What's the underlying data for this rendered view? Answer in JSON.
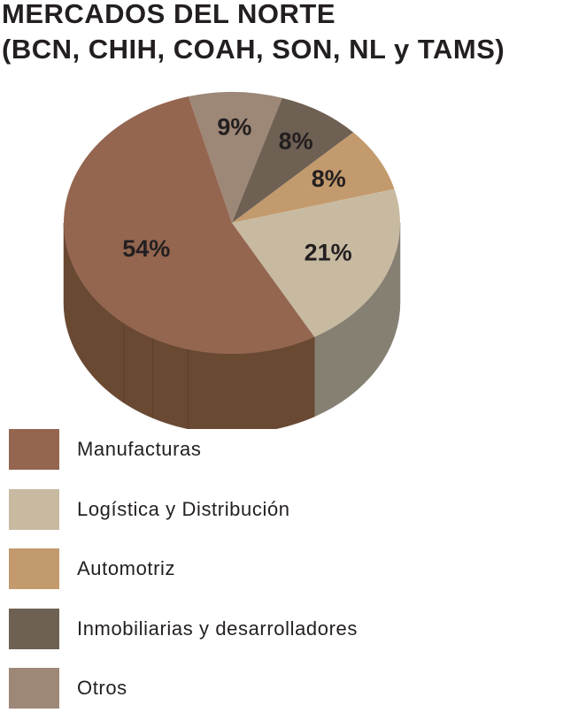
{
  "title": {
    "line1": "MERCADOS DEL NORTE",
    "line2": "(BCN, CHIH, COAH, SON, NL y TAMS)"
  },
  "chart_data": {
    "type": "pie",
    "style": "3d",
    "slices": [
      {
        "label": "Manufacturas",
        "value": 54,
        "display": "54%",
        "color": "#946650",
        "side_color": "#6a4933"
      },
      {
        "label": "Logística y Distribución",
        "value": 21,
        "display": "21%",
        "color": "#c8baa1",
        "side_color": "#868073"
      },
      {
        "label": "Automotriz",
        "value": 8,
        "display": "8%",
        "color": "#c39a6d",
        "side_color": "#8a6c4c"
      },
      {
        "label": "Inmobiliarias y desarrolladores",
        "value": 8,
        "display": "8%",
        "color": "#6e6053",
        "side_color": "#4e4438"
      },
      {
        "label": "Otros",
        "value": 9,
        "display": "9%",
        "color": "#9d8777",
        "side_color": "#6f5f53"
      }
    ],
    "legend_position": "bottom"
  },
  "legend": {
    "items": [
      {
        "label": "Manufacturas",
        "color": "#946650"
      },
      {
        "label": "Logística y Distribución",
        "color": "#c8baa1"
      },
      {
        "label": "Automotriz",
        "color": "#c39a6d"
      },
      {
        "label": "Inmobiliarias y desarrolladores",
        "color": "#6e6053"
      },
      {
        "label": "Otros",
        "color": "#9d8777"
      }
    ]
  }
}
